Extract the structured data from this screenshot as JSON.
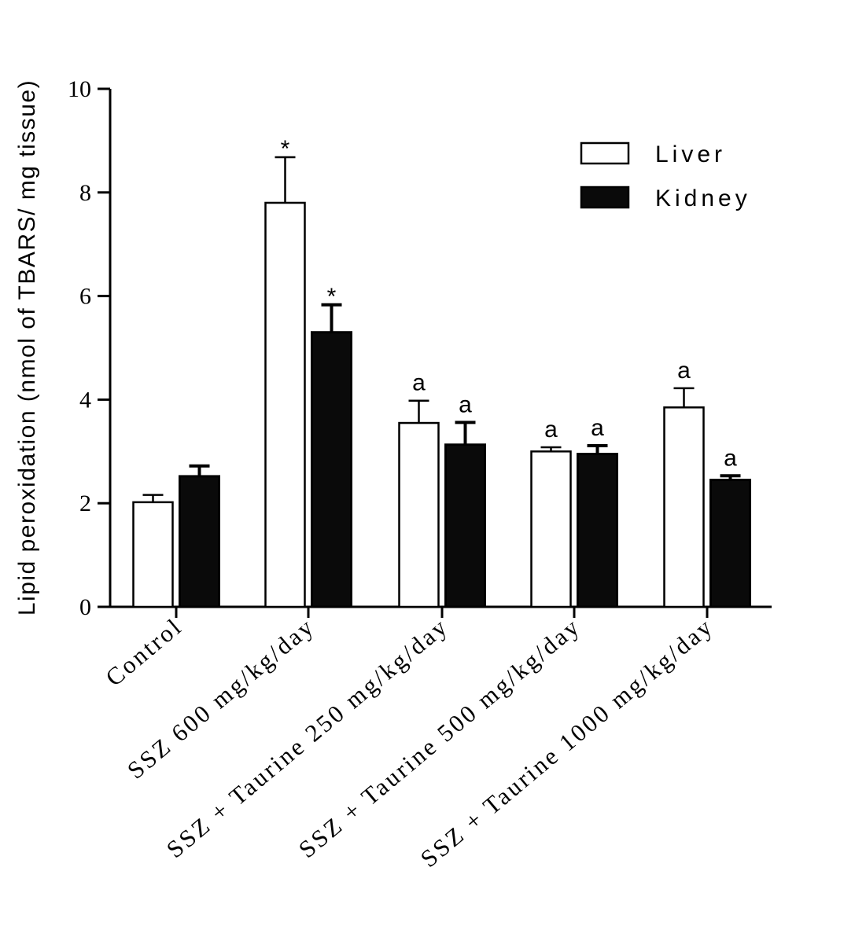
{
  "chart_data": {
    "type": "bar",
    "title": "",
    "xlabel": "",
    "ylabel": "Lipid peroxidation (nmol of TBARS/ mg tissue)",
    "ylim": [
      0,
      10
    ],
    "yticks": [
      0,
      2,
      4,
      6,
      8,
      10
    ],
    "yticks_labels": [
      "0",
      "2",
      "4",
      "6",
      "8",
      "10"
    ],
    "categories": [
      "Control",
      "SSZ 600 mg/kg/day",
      "SSZ + Taurine 250 mg/kg/day",
      "SSZ + Taurine 500 mg/kg/day",
      "SSZ + Taurine 1000 mg/kg/day"
    ],
    "series": [
      {
        "name": "Liver",
        "color": "#ffffff",
        "values": [
          2.02,
          7.8,
          3.55,
          3.0,
          3.85
        ],
        "errors": [
          0.14,
          0.88,
          0.43,
          0.08,
          0.37
        ],
        "annotations": [
          "",
          "*",
          "a",
          "a",
          "a"
        ]
      },
      {
        "name": "Kidney",
        "color": "#0a0a0a",
        "values": [
          2.52,
          5.3,
          3.13,
          2.95,
          2.45
        ],
        "errors": [
          0.2,
          0.53,
          0.43,
          0.16,
          0.08
        ],
        "annotations": [
          "",
          "*",
          "a",
          "a",
          "a"
        ]
      }
    ],
    "legend": {
      "position": "top-right",
      "entries": [
        "Liver",
        "Kidney"
      ]
    },
    "grid": false
  }
}
